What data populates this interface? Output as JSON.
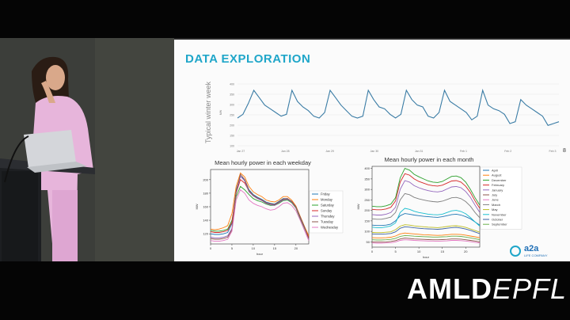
{
  "slide": {
    "title": "DATA EXPLORATION",
    "page_number": "8",
    "logo": {
      "name": "a2a",
      "subtitle": "LIFE COMPANY"
    }
  },
  "branding": {
    "part1": "AMLD",
    "part2": "EPFL"
  },
  "colors": {
    "accent": "#1fa6c9",
    "logo": "#1f6fb6"
  },
  "chart_data": [
    {
      "type": "line",
      "title": "",
      "ylabel": "Typical winter week",
      "yunit": "MW",
      "ytick_labels": [
        "400",
        "350",
        "300",
        "250",
        "200",
        "150",
        "100"
      ],
      "xtick_labels": [
        "Jan 27",
        "Jan 28",
        "Jan 29",
        "Jan 30",
        "Jan 31",
        "Feb 1",
        "Feb 2",
        "Feb 3"
      ],
      "grid": true,
      "series": [
        {
          "name": "",
          "color": "#3a7ca5",
          "values": [
            250,
            270,
            330,
            400,
            360,
            320,
            300,
            280,
            260,
            270,
            400,
            340,
            310,
            290,
            260,
            250,
            280,
            400,
            360,
            320,
            290,
            260,
            250,
            260,
            400,
            350,
            310,
            300,
            270,
            250,
            270,
            400,
            350,
            320,
            310,
            260,
            250,
            280,
            400,
            340,
            320,
            300,
            280,
            240,
            260,
            400,
            320,
            300,
            290,
            270,
            220,
            230,
            350,
            320,
            300,
            280,
            260,
            210,
            220,
            230
          ]
        }
      ]
    },
    {
      "type": "line",
      "title": "Mean hourly power in each weekday",
      "xlabel": "hour",
      "ylabel": "MW",
      "xticks": [
        0,
        5,
        10,
        15,
        20
      ],
      "yticks": [
        120,
        140,
        160,
        180,
        200
      ],
      "xlim": [
        0,
        23
      ],
      "ylim": [
        105,
        215
      ],
      "legend": "right",
      "categories": [
        0,
        1,
        2,
        3,
        4,
        5,
        6,
        7,
        8,
        9,
        10,
        11,
        12,
        13,
        14,
        15,
        16,
        17,
        18,
        19,
        20,
        21,
        22,
        23
      ],
      "series": [
        {
          "name": "Friday",
          "color": "#1f77b4",
          "values": [
            120,
            119,
            119,
            120,
            122,
            135,
            185,
            205,
            200,
            185,
            178,
            174,
            171,
            167,
            165,
            164,
            168,
            172,
            172,
            168,
            160,
            145,
            130,
            115
          ]
        },
        {
          "name": "Monday",
          "color": "#ff7f0e",
          "values": [
            127,
            126,
            127,
            129,
            132,
            150,
            190,
            210,
            204,
            190,
            182,
            178,
            175,
            170,
            168,
            167,
            170,
            175,
            175,
            170,
            161,
            146,
            131,
            117
          ]
        },
        {
          "name": "Saturday",
          "color": "#2ca02c",
          "values": [
            125,
            124,
            124,
            125,
            127,
            140,
            175,
            190,
            185,
            178,
            172,
            169,
            167,
            164,
            162,
            162,
            165,
            169,
            170,
            166,
            158,
            142,
            128,
            114
          ]
        },
        {
          "name": "Sunday",
          "color": "#d62728",
          "values": [
            123,
            122,
            122,
            123,
            125,
            137,
            180,
            200,
            195,
            183,
            176,
            172,
            170,
            166,
            164,
            163,
            167,
            171,
            172,
            167,
            159,
            144,
            129,
            115
          ]
        },
        {
          "name": "Thursday",
          "color": "#9467bd",
          "values": [
            115,
            114,
            114,
            115,
            117,
            128,
            180,
            205,
            198,
            182,
            176,
            172,
            169,
            165,
            163,
            162,
            166,
            170,
            171,
            167,
            159,
            144,
            129,
            112
          ]
        },
        {
          "name": "Tuesday",
          "color": "#8c564b",
          "values": [
            113,
            112,
            112,
            113,
            115,
            126,
            182,
            208,
            200,
            184,
            177,
            173,
            170,
            166,
            164,
            163,
            167,
            171,
            172,
            168,
            160,
            145,
            130,
            113
          ]
        },
        {
          "name": "Wednesday",
          "color": "#e377c2",
          "values": [
            110,
            109,
            109,
            110,
            112,
            124,
            170,
            185,
            180,
            170,
            165,
            162,
            160,
            157,
            155,
            156,
            160,
            165,
            166,
            162,
            154,
            140,
            125,
            110
          ]
        }
      ]
    },
    {
      "type": "line",
      "title": "Mean hourly power in each month",
      "xlabel": "hour",
      "ylabel": "MW",
      "xticks": [
        0,
        5,
        10,
        15,
        20
      ],
      "yticks": [
        50,
        100,
        150,
        200,
        250,
        300,
        350,
        400
      ],
      "xlim": [
        0,
        23
      ],
      "ylim": [
        25,
        410
      ],
      "legend": "right",
      "categories": [
        0,
        1,
        2,
        3,
        4,
        5,
        6,
        7,
        8,
        9,
        10,
        11,
        12,
        13,
        14,
        15,
        16,
        17,
        18,
        19,
        20,
        21,
        22,
        23
      ],
      "series": [
        {
          "name": "April",
          "color": "#1f77b4",
          "values": [
            130,
            128,
            128,
            130,
            135,
            150,
            175,
            185,
            182,
            178,
            175,
            172,
            170,
            168,
            167,
            170,
            175,
            180,
            182,
            178,
            170,
            160,
            145,
            130
          ]
        },
        {
          "name": "August",
          "color": "#ff7f0e",
          "values": [
            70,
            69,
            69,
            70,
            72,
            78,
            88,
            92,
            90,
            88,
            86,
            84,
            83,
            82,
            81,
            82,
            84,
            86,
            86,
            85,
            82,
            78,
            74,
            70
          ]
        },
        {
          "name": "December",
          "color": "#2ca02c",
          "values": [
            220,
            218,
            218,
            222,
            230,
            260,
            355,
            400,
            392,
            372,
            360,
            350,
            340,
            335,
            333,
            338,
            350,
            362,
            364,
            356,
            335,
            300,
            260,
            225
          ]
        },
        {
          "name": "February",
          "color": "#d62728",
          "values": [
            205,
            203,
            203,
            207,
            215,
            245,
            335,
            375,
            368,
            350,
            338,
            330,
            322,
            318,
            316,
            320,
            330,
            340,
            342,
            335,
            315,
            285,
            245,
            210
          ]
        },
        {
          "name": "January",
          "color": "#9467bd",
          "values": [
            180,
            178,
            178,
            182,
            190,
            215,
            300,
            342,
            335,
            318,
            308,
            300,
            294,
            290,
            288,
            292,
            302,
            312,
            314,
            308,
            290,
            262,
            225,
            190
          ]
        },
        {
          "name": "July",
          "color": "#8c564b",
          "values": [
            50,
            49,
            49,
            50,
            52,
            56,
            64,
            68,
            66,
            64,
            63,
            62,
            61,
            60,
            60,
            61,
            62,
            64,
            64,
            63,
            60,
            57,
            54,
            50
          ]
        },
        {
          "name": "June",
          "color": "#e377c2",
          "values": [
            45,
            44,
            44,
            45,
            46,
            50,
            57,
            60,
            59,
            57,
            56,
            55,
            54,
            54,
            53,
            54,
            55,
            57,
            57,
            56,
            54,
            51,
            48,
            45
          ]
        },
        {
          "name": "March",
          "color": "#7f7f7f",
          "values": [
            160,
            158,
            158,
            162,
            168,
            190,
            250,
            280,
            275,
            262,
            255,
            250,
            245,
            242,
            240,
            244,
            252,
            260,
            262,
            256,
            242,
            220,
            190,
            165
          ]
        },
        {
          "name": "May",
          "color": "#bcbd22",
          "values": [
            95,
            94,
            94,
            96,
            98,
            108,
            125,
            132,
            130,
            126,
            124,
            122,
            120,
            119,
            118,
            120,
            123,
            126,
            127,
            124,
            119,
            112,
            104,
            96
          ]
        },
        {
          "name": "November",
          "color": "#17becf",
          "values": [
            120,
            118,
            118,
            121,
            126,
            140,
            190,
            210,
            205,
            196,
            190,
            186,
            182,
            180,
            179,
            182,
            190,
            198,
            200,
            195,
            184,
            166,
            145,
            125
          ]
        },
        {
          "name": "October",
          "color": "#3a5fa0",
          "values": [
            88,
            87,
            87,
            88,
            90,
            98,
            115,
            122,
            120,
            117,
            115,
            113,
            112,
            111,
            110,
            112,
            115,
            118,
            119,
            116,
            111,
            105,
            97,
            89
          ]
        },
        {
          "name": "September",
          "color": "#6ab04c",
          "values": [
            60,
            59,
            59,
            60,
            62,
            67,
            76,
            80,
            79,
            77,
            76,
            75,
            74,
            73,
            73,
            74,
            75,
            77,
            77,
            76,
            73,
            69,
            65,
            61
          ]
        }
      ]
    }
  ]
}
